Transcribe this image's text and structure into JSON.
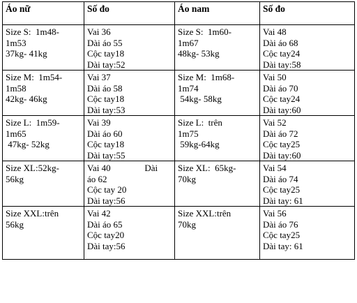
{
  "headers": [
    "Áo nữ",
    "Số đo",
    "Áo nam",
    "Số đo"
  ],
  "rows": [
    {
      "women_size": [
        "Size S:  1m48-",
        "1m53",
        "37kg- 41kg"
      ],
      "women_measure": [
        "Vai 36",
        "Dài áo 55",
        "Cộc tay18",
        "Dài tay:52"
      ],
      "men_size": [
        "Size S:  1m60-",
        "1m67",
        "48kg- 53kg"
      ],
      "men_measure": [
        "Vai 48",
        "Dài áo 68",
        "Cộc tay24",
        "Dài tay:58"
      ]
    },
    {
      "women_size": [
        "Size M:  1m54-",
        "1m58",
        "42kg- 46kg"
      ],
      "women_measure": [
        "Vai 37",
        "Dài áo 58",
        "Cộc tay18",
        "Dài tay:53"
      ],
      "men_size": [
        "Size M:  1m68-",
        "1m74",
        " 54kg- 58kg"
      ],
      "men_measure": [
        "Vai 50",
        "Dài áo 70",
        "Cộc tay24",
        "Dài tay:60"
      ]
    },
    {
      "women_size": [
        "Size L:  1m59-",
        "1m65",
        " 47kg- 52kg"
      ],
      "women_measure": [
        "Vai 39",
        "Dài áo 60",
        "Cộc tay18",
        "Dài tay:55"
      ],
      "men_size": [
        "Size L:  trên",
        "1m75",
        " 59kg-64kg"
      ],
      "men_measure": [
        "Vai 52",
        "Dài áo 72",
        "Cộc tay25",
        "Dài tay:60"
      ]
    },
    {
      "women_size": [
        "Size XL:52kg-",
        "56kg"
      ],
      "women_measure": [
        "Vai 40               Dài",
        "áo 62",
        "Cộc tay 20",
        "Dài tay:56"
      ],
      "men_size": [
        "Size XL:  65kg-",
        "70kg"
      ],
      "men_measure": [
        "Vai 54",
        "Dài áo 74",
        "Cộc tay25",
        "Dài tay: 61"
      ]
    },
    {
      "women_size": [
        "Size XXL:trên",
        "56kg"
      ],
      "women_measure": [
        "Vai 42",
        "Dài áo 65",
        "Cộc tay20",
        "Dài tay:56"
      ],
      "men_size": [
        "Size XXL:trên",
        "70kg"
      ],
      "men_measure": [
        "Vai 56",
        "Dài áo 76",
        "Cộc tay25",
        "Dài tay: 61"
      ]
    }
  ]
}
